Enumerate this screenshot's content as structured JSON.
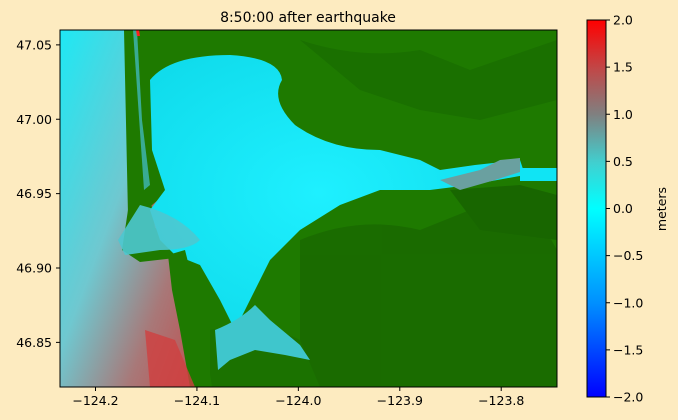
{
  "chart_data": {
    "type": "heatmap",
    "title": "8:50:00 after earthquake",
    "xlabel": "",
    "ylabel": "",
    "xlim": [
      -124.235,
      -123.745
    ],
    "ylim": [
      46.82,
      47.06
    ],
    "x_ticks": [
      -124.2,
      -124.1,
      -124.0,
      -123.9,
      -123.8
    ],
    "x_tick_labels": [
      "−124.2",
      "−124.1",
      "−124.0",
      "−123.9",
      "−123.8"
    ],
    "y_ticks": [
      46.85,
      46.9,
      46.95,
      47.0,
      47.05
    ],
    "y_tick_labels": [
      "46.85",
      "46.90",
      "46.95",
      "47.00",
      "47.05"
    ],
    "grid": false,
    "colorbar": {
      "label": "meters",
      "range": [
        -2.0,
        2.0
      ],
      "ticks": [
        2.0,
        1.5,
        1.0,
        0.5,
        0.0,
        -0.5,
        -1.0,
        -1.5,
        -2.0
      ],
      "tick_labels": [
        "2.0",
        "1.5",
        "1.0",
        "0.5",
        "0.0",
        "−0.5",
        "−1.0",
        "−1.5",
        "−2.0"
      ],
      "colors": [
        "#0000ff",
        "#00a0ff",
        "#00ffff",
        "#40c8c8",
        "#808080",
        "#c04040",
        "#ff0000"
      ]
    },
    "colors": {
      "land": "#1e7a00",
      "land_dark": "#186400",
      "water": "#10e4f4",
      "ocean_high": "#b85858"
    }
  }
}
